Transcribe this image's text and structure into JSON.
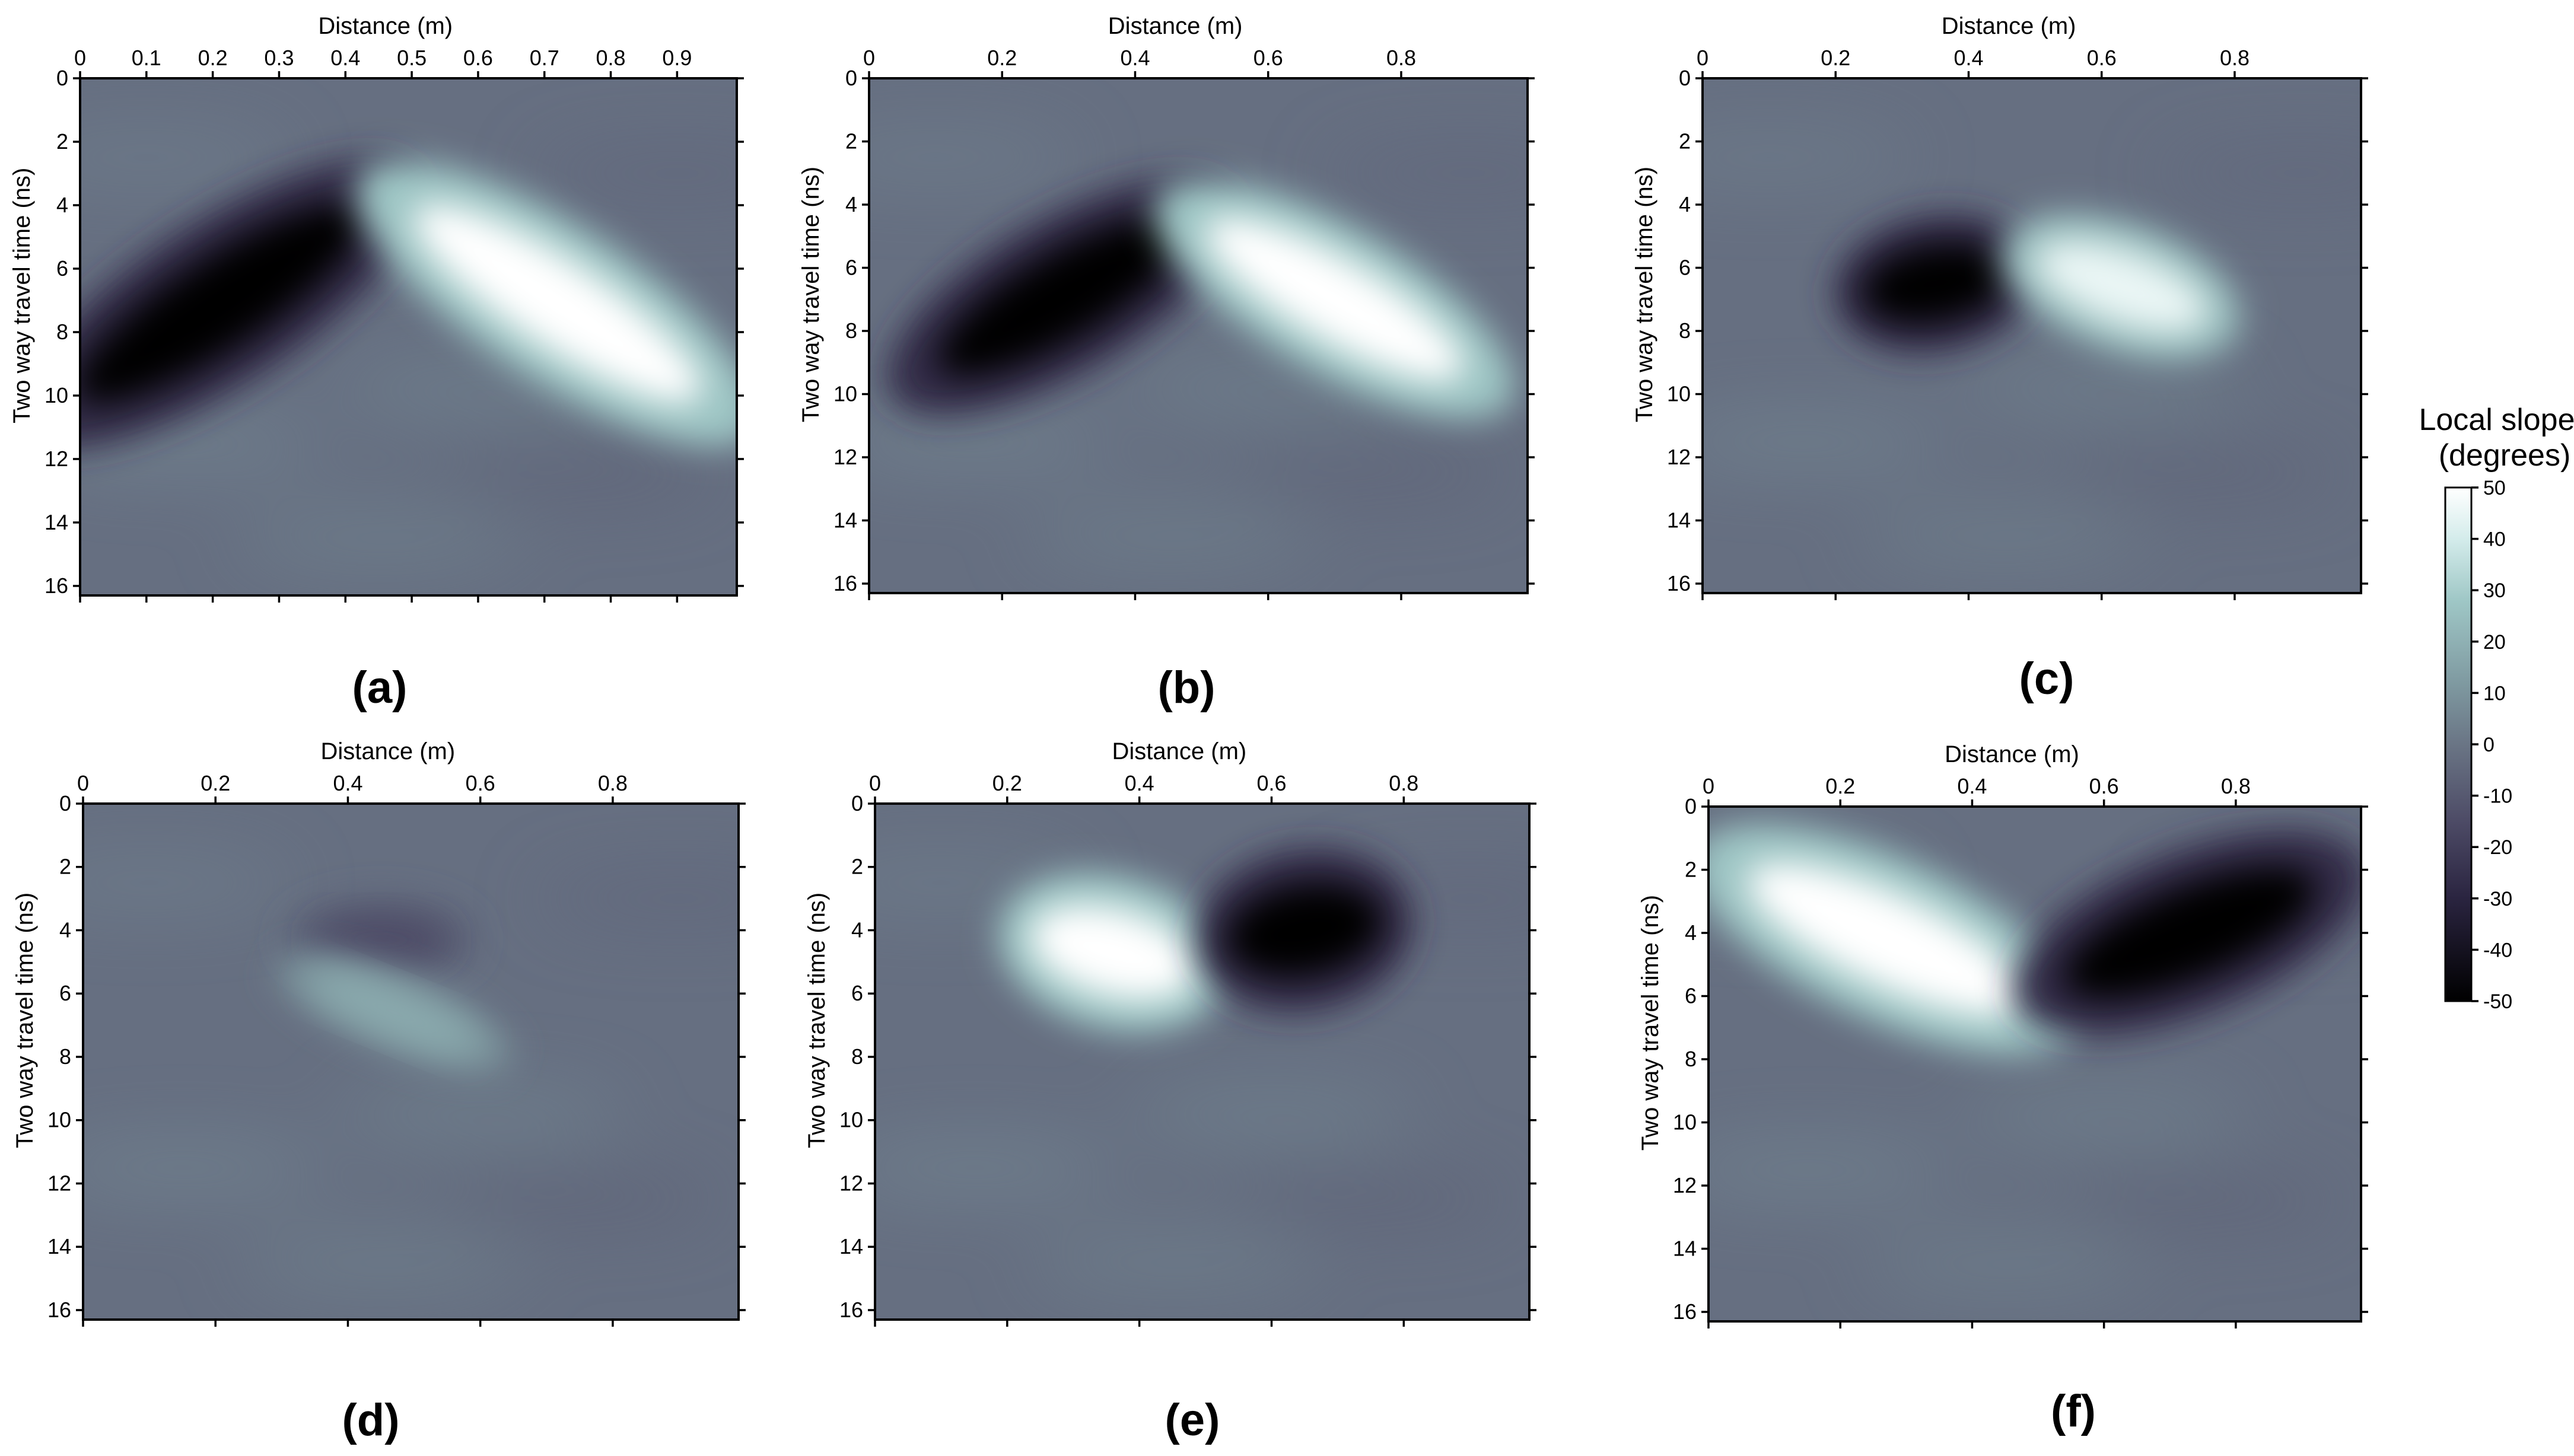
{
  "chart_data": {
    "type": "heatmap",
    "figure": {
      "panels": [
        {
          "label": "(a)",
          "xlabel": "Distance (m)",
          "ylabel": "Two way travel time (ns)",
          "xlim": [
            0,
            0.99
          ],
          "ylim": [
            0,
            16.3
          ],
          "x_ticks": [
            0,
            0.1,
            0.2,
            0.3,
            0.4,
            0.5,
            0.6,
            0.7,
            0.8,
            0.9
          ],
          "x_tick_labels": [
            "0",
            "0.1",
            "0.2",
            "0.3",
            "0.4",
            "0.5",
            "0.6",
            "0.7",
            "0.8",
            "0.9"
          ],
          "y_ticks": [
            0,
            2,
            4,
            6,
            8,
            10,
            12,
            14,
            16
          ],
          "y_tick_labels": [
            "0",
            "2",
            "4",
            "6",
            "8",
            "10",
            "12",
            "14",
            "16"
          ],
          "features": [
            {
              "kind": "negative",
              "x": 0.21,
              "y": 7.1,
              "len": 0.3,
              "thick": 1.9,
              "angle_deg": -33,
              "slope": -50
            },
            {
              "kind": "positive",
              "x": 0.72,
              "y": 7.1,
              "len": 0.3,
              "thick": 1.8,
              "angle_deg": 33,
              "slope": 50
            }
          ]
        },
        {
          "label": "(b)",
          "xlabel": "Distance (m)",
          "ylabel": "Two way travel time (ns)",
          "xlim": [
            0,
            0.99
          ],
          "ylim": [
            0,
            16.3
          ],
          "x_ticks": [
            0,
            0.2,
            0.4,
            0.6,
            0.8
          ],
          "x_tick_labels": [
            "0",
            "0.2",
            "0.4",
            "0.6",
            "0.8"
          ],
          "y_ticks": [
            0,
            2,
            4,
            6,
            8,
            10,
            12,
            14,
            16
          ],
          "y_tick_labels": [
            "0",
            "2",
            "4",
            "6",
            "8",
            "10",
            "12",
            "14",
            "16"
          ],
          "features": [
            {
              "kind": "negative",
              "x": 0.29,
              "y": 6.9,
              "len": 0.25,
              "thick": 1.8,
              "angle_deg": -30,
              "slope": -50
            },
            {
              "kind": "positive",
              "x": 0.7,
              "y": 7.0,
              "len": 0.26,
              "thick": 1.7,
              "angle_deg": 30,
              "slope": 50
            }
          ]
        },
        {
          "label": "(c)",
          "xlabel": "Distance (m)",
          "ylabel": "Two way travel time (ns)",
          "xlim": [
            0,
            0.99
          ],
          "ylim": [
            0,
            16.3
          ],
          "x_ticks": [
            0,
            0.2,
            0.4,
            0.6,
            0.8
          ],
          "x_tick_labels": [
            "0",
            "0.2",
            "0.4",
            "0.6",
            "0.8"
          ],
          "y_ticks": [
            0,
            2,
            4,
            6,
            8,
            10,
            12,
            14,
            16
          ],
          "y_tick_labels": [
            "0",
            "2",
            "4",
            "6",
            "8",
            "10",
            "12",
            "14",
            "16"
          ],
          "features": [
            {
              "kind": "negative",
              "x": 0.35,
              "y": 6.5,
              "len": 0.13,
              "thick": 1.6,
              "angle_deg": -10,
              "slope": -50
            },
            {
              "kind": "positive",
              "x": 0.63,
              "y": 6.6,
              "len": 0.16,
              "thick": 1.5,
              "angle_deg": 20,
              "slope": 45
            }
          ]
        },
        {
          "label": "(d)",
          "xlabel": "Distance (m)",
          "ylabel": "Two way travel time (ns)",
          "xlim": [
            0,
            0.99
          ],
          "ylim": [
            0,
            16.3
          ],
          "x_ticks": [
            0,
            0.2,
            0.4,
            0.6,
            0.8
          ],
          "x_tick_labels": [
            "0",
            "0.2",
            "0.4",
            "0.6",
            "0.8"
          ],
          "y_ticks": [
            0,
            2,
            4,
            6,
            8,
            10,
            12,
            14,
            16
          ],
          "y_tick_labels": [
            "0",
            "2",
            "4",
            "6",
            "8",
            "10",
            "12",
            "14",
            "16"
          ],
          "features": [
            {
              "kind": "negative",
              "x": 0.45,
              "y": 4.3,
              "len": 0.12,
              "thick": 1.0,
              "angle_deg": 0,
              "slope": -15
            },
            {
              "kind": "positive",
              "x": 0.47,
              "y": 6.6,
              "len": 0.16,
              "thick": 0.9,
              "angle_deg": 22,
              "slope": 18
            }
          ]
        },
        {
          "label": "(e)",
          "xlabel": "Distance (m)",
          "ylabel": "Two way travel time (ns)",
          "xlim": [
            0,
            0.99
          ],
          "ylim": [
            0,
            16.3
          ],
          "x_ticks": [
            0,
            0.2,
            0.4,
            0.6,
            0.8
          ],
          "x_tick_labels": [
            "0",
            "0.2",
            "0.4",
            "0.6",
            "0.8"
          ],
          "y_ticks": [
            0,
            2,
            4,
            6,
            8,
            10,
            12,
            14,
            16
          ],
          "y_tick_labels": [
            "0",
            "2",
            "4",
            "6",
            "8",
            "10",
            "12",
            "14",
            "16"
          ],
          "features": [
            {
              "kind": "positive",
              "x": 0.36,
              "y": 4.7,
              "len": 0.15,
              "thick": 1.8,
              "angle_deg": 15,
              "slope": 50
            },
            {
              "kind": "negative",
              "x": 0.65,
              "y": 4.0,
              "len": 0.14,
              "thick": 1.9,
              "angle_deg": -10,
              "slope": -50
            }
          ]
        },
        {
          "label": "(f)",
          "xlabel": "Distance (m)",
          "ylabel": "Two way travel time (ns)",
          "xlim": [
            0,
            0.99
          ],
          "ylim": [
            0,
            16.3
          ],
          "x_ticks": [
            0,
            0.2,
            0.4,
            0.6,
            0.8
          ],
          "x_tick_labels": [
            "0",
            "0.2",
            "0.4",
            "0.6",
            "0.8"
          ],
          "y_ticks": [
            0,
            2,
            4,
            6,
            8,
            10,
            12,
            14,
            16
          ],
          "y_tick_labels": [
            "0",
            "2",
            "4",
            "6",
            "8",
            "10",
            "12",
            "14",
            "16"
          ],
          "features": [
            {
              "kind": "positive",
              "x": 0.27,
              "y": 4.2,
              "len": 0.27,
              "thick": 1.9,
              "angle_deg": 25,
              "slope": 50
            },
            {
              "kind": "negative",
              "x": 0.73,
              "y": 4.0,
              "len": 0.24,
              "thick": 1.9,
              "angle_deg": -22,
              "slope": -50
            }
          ]
        }
      ],
      "colorbar": {
        "title_line1": "Local slopes",
        "title_line2": "(degrees)",
        "min": -50,
        "max": 50,
        "ticks": [
          50,
          40,
          30,
          20,
          10,
          0,
          -10,
          -20,
          -30,
          -40,
          -50
        ],
        "tick_labels": [
          "50",
          "40",
          "30",
          "20",
          "10",
          "0",
          "-10",
          "-20",
          "-30",
          "-40",
          "-50"
        ],
        "colormap_stops": [
          {
            "value": -50,
            "color": "#000000"
          },
          {
            "value": -30,
            "color": "#2a2440"
          },
          {
            "value": -15,
            "color": "#4d4b66"
          },
          {
            "value": 0,
            "color": "#6a7585"
          },
          {
            "value": 12,
            "color": "#7f9aa1"
          },
          {
            "value": 28,
            "color": "#9fc7c6"
          },
          {
            "value": 40,
            "color": "#d4eceb"
          },
          {
            "value": 50,
            "color": "#ffffff"
          }
        ]
      },
      "background_slope": -2
    }
  }
}
